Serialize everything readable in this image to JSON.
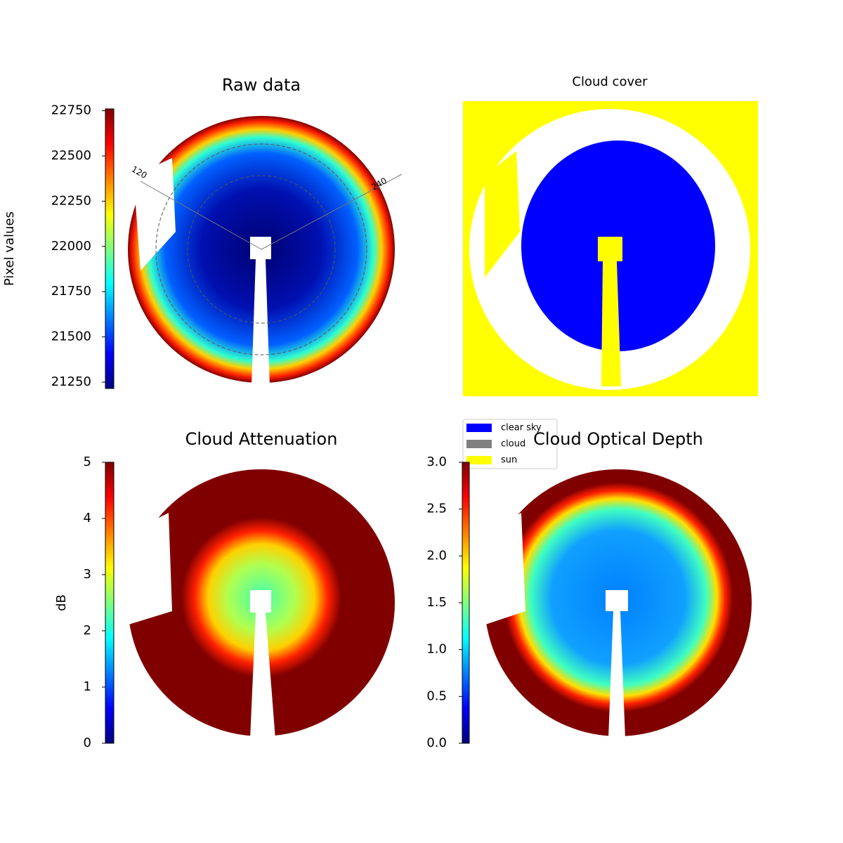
{
  "chart_data": [
    {
      "type": "image",
      "title": "Raw data",
      "colormap": "jet",
      "colorbar_label": "Pixel values",
      "ylim": [
        21215,
        22760
      ],
      "yticks": [
        21250,
        21500,
        21750,
        22000,
        22250,
        22500,
        22750
      ],
      "annotations": [
        "120",
        "240"
      ]
    },
    {
      "type": "image",
      "title": "Cloud cover",
      "legend": [
        {
          "name": "clear sky",
          "color": "#0000ff"
        },
        {
          "name": "cloud",
          "color": "#808080"
        },
        {
          "name": "sun",
          "color": "#ffff00"
        }
      ]
    },
    {
      "type": "image",
      "title": "Cloud Attenuation",
      "colormap": "jet",
      "colorbar_label": "dB",
      "ylim": [
        0,
        5
      ],
      "yticks": [
        0,
        1,
        2,
        3,
        4,
        5
      ]
    },
    {
      "type": "image",
      "title": "Cloud Optical Depth",
      "colormap": "jet",
      "ylim": [
        0,
        3
      ],
      "yticks": [
        {
          "value": 0,
          "label": "0.0"
        },
        0.5,
        {
          "value": 1,
          "label": "1.0"
        },
        1.5,
        {
          "value": 2,
          "label": "2.0"
        },
        2.5,
        {
          "value": 3,
          "label": "3.0"
        }
      ]
    }
  ]
}
